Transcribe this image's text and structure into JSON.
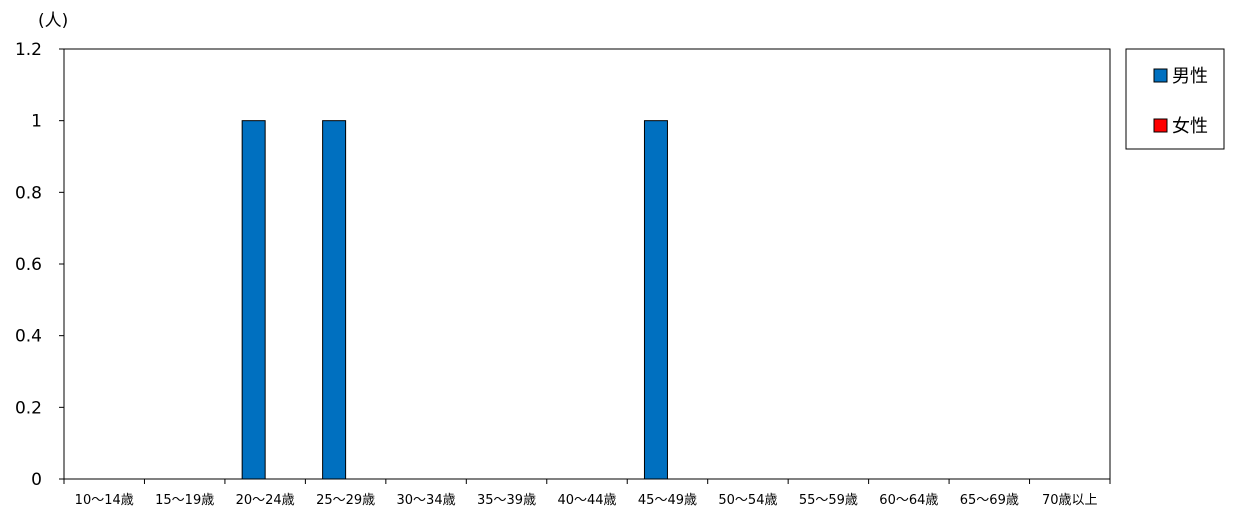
{
  "chart_data": {
    "type": "bar",
    "unit_label": "(人)",
    "title": "",
    "xlabel": "",
    "ylabel": "",
    "ylim": [
      0,
      1.2
    ],
    "yticks": [
      "0",
      "0.2",
      "0.4",
      "0.6",
      "0.8",
      "1",
      "1.2"
    ],
    "categories": [
      "10〜14歳",
      "15〜19歳",
      "20〜24歳",
      "25〜29歳",
      "30〜34歳",
      "35〜39歳",
      "40〜44歳",
      "45〜49歳",
      "50〜54歳",
      "55〜59歳",
      "60〜64歳",
      "65〜69歳",
      "70歳以上"
    ],
    "series": [
      {
        "name": "男性",
        "color": "#0070c0",
        "values": [
          0,
          0,
          1,
          1,
          0,
          0,
          0,
          1,
          0,
          0,
          0,
          0,
          0
        ]
      },
      {
        "name": "女性",
        "color": "#ff0000",
        "values": [
          0,
          0,
          0,
          0,
          0,
          0,
          0,
          0,
          0,
          0,
          0,
          0,
          0
        ]
      }
    ],
    "grid": false,
    "legend_position": "right"
  }
}
